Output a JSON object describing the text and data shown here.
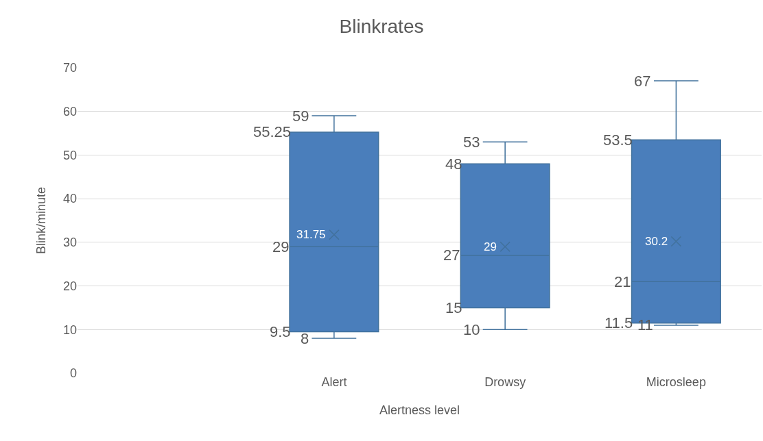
{
  "chart_data": {
    "type": "box",
    "title": "Blinkrates",
    "xlabel": "Alertness level",
    "ylabel": "Blink/minute",
    "categories": [
      null,
      "Alert",
      "Drowsy",
      "Microsleep"
    ],
    "series": [
      {
        "color": "#4a7ebb",
        "boxes": [
          null,
          {
            "low": 8,
            "q1": 9.5,
            "median": 29,
            "q3": 55.25,
            "high": 59
          },
          {
            "low": 10,
            "q1": 15,
            "median": 27,
            "q3": 48,
            "high": 53
          },
          {
            "low": 11,
            "q1": 11.5,
            "median": 21,
            "q3": 53.5,
            "high": 67
          }
        ]
      },
      {
        "type": "scatter",
        "x": [
          "Alert",
          "Drowsy",
          "Microsleep"
        ],
        "values": [
          31.75,
          29,
          30.2
        ],
        "color": "#41719c",
        "marker": "cross"
      }
    ],
    "ylim": [
      0,
      70
    ],
    "yticks": [
      0,
      10,
      20,
      30,
      40,
      50,
      60,
      70
    ],
    "grid": "y",
    "annotations": [
      {
        "text": "59",
        "x": "Alert",
        "y": 59
      },
      {
        "text": "55.25",
        "x": "Alert",
        "y": 55.25
      },
      {
        "text": "31.75",
        "x": "Alert",
        "y": 31.75
      },
      {
        "text": "29",
        "x": "Alert",
        "y": 29
      },
      {
        "text": "9.5",
        "x": "Alert",
        "y": 9.5
      },
      {
        "text": "8",
        "x": "Alert",
        "y": 8
      },
      {
        "text": "53",
        "x": "Drowsy",
        "y": 53
      },
      {
        "text": "48",
        "x": "Drowsy",
        "y": 48
      },
      {
        "text": "29",
        "x": "Drowsy",
        "y": 29
      },
      {
        "text": "27",
        "x": "Drowsy",
        "y": 27
      },
      {
        "text": "15",
        "x": "Drowsy",
        "y": 15
      },
      {
        "text": "10",
        "x": "Drowsy",
        "y": 10
      },
      {
        "text": "67",
        "x": "Microsleep",
        "y": 67
      },
      {
        "text": "53.5",
        "x": "Microsleep",
        "y": 53.5
      },
      {
        "text": "30.2",
        "x": "Microsleep",
        "y": 30.2
      },
      {
        "text": "21",
        "x": "Microsleep",
        "y": 21
      },
      {
        "text": "11.5",
        "x": "Microsleep",
        "y": 11.5
      },
      {
        "text": "11",
        "x": "Microsleep",
        "y": 11
      }
    ]
  }
}
